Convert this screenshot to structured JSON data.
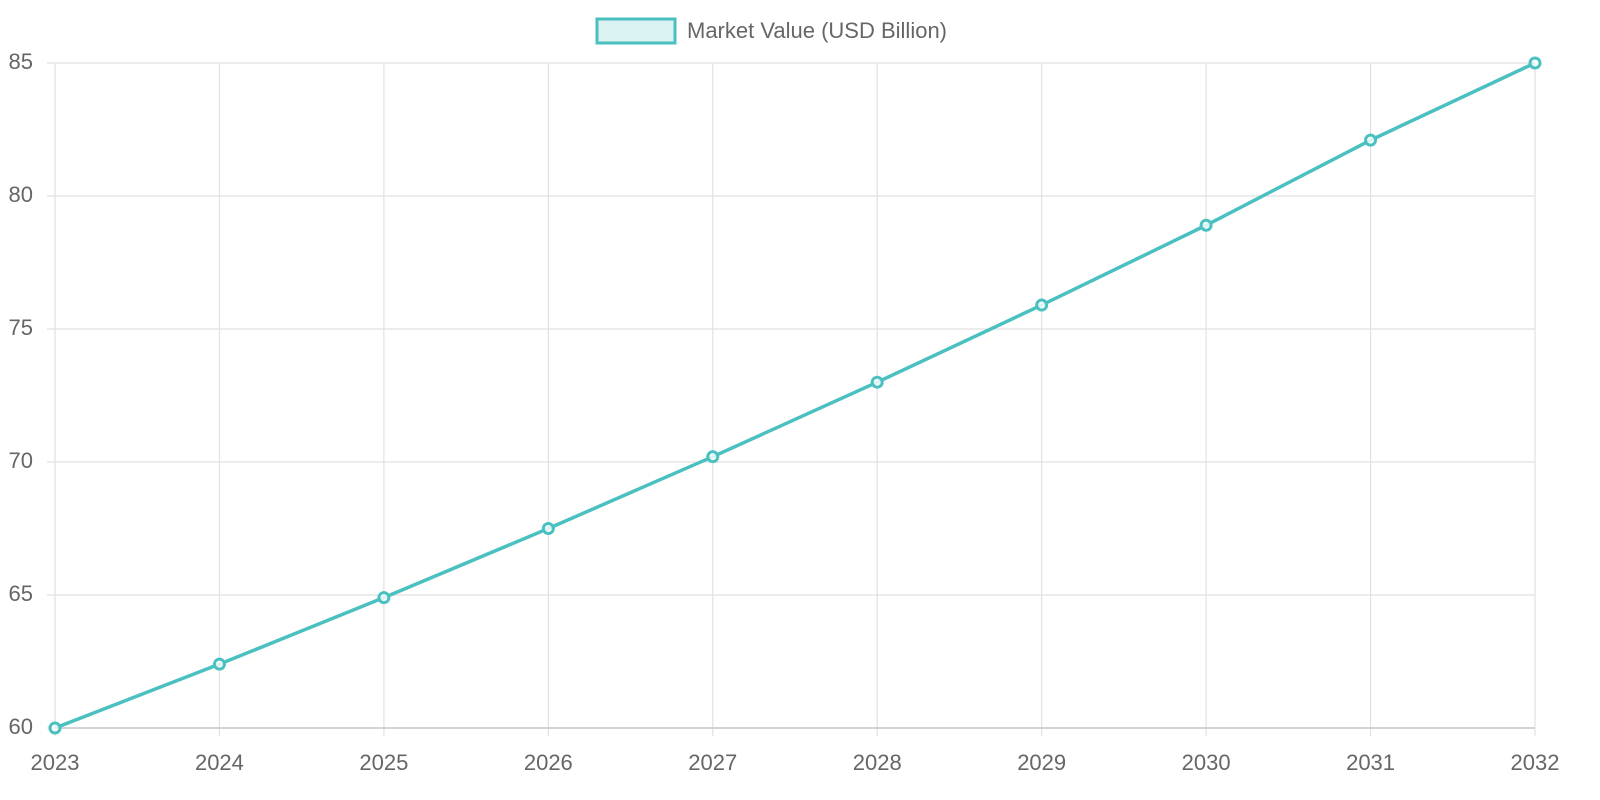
{
  "chart_data": {
    "type": "line",
    "categories": [
      "2023",
      "2024",
      "2025",
      "2026",
      "2027",
      "2028",
      "2029",
      "2030",
      "2031",
      "2032"
    ],
    "series": [
      {
        "name": "Market Value (USD Billion)",
        "color": "#4bc0c0",
        "values": [
          60,
          62.4,
          64.9,
          67.5,
          70.2,
          73.0,
          75.9,
          78.9,
          82.1,
          85
        ]
      }
    ],
    "ylim": [
      60,
      85
    ],
    "yticks": [
      60,
      65,
      70,
      75,
      80,
      85
    ],
    "grid": true,
    "legend": "top"
  }
}
